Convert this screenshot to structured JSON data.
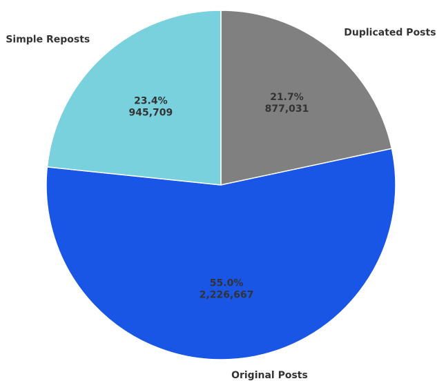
{
  "chart_data": {
    "type": "pie",
    "categories": [
      "Duplicated Posts",
      "Original Posts",
      "Simple Reposts"
    ],
    "values": [
      877031,
      2226667,
      945709
    ],
    "value_labels": [
      "877,031",
      "2,226,667",
      "945,709"
    ],
    "percent_labels": [
      "21.7%",
      "55.0%",
      "23.4%"
    ],
    "colors": [
      "#808080",
      "#1a56e6",
      "#79d1de"
    ]
  }
}
